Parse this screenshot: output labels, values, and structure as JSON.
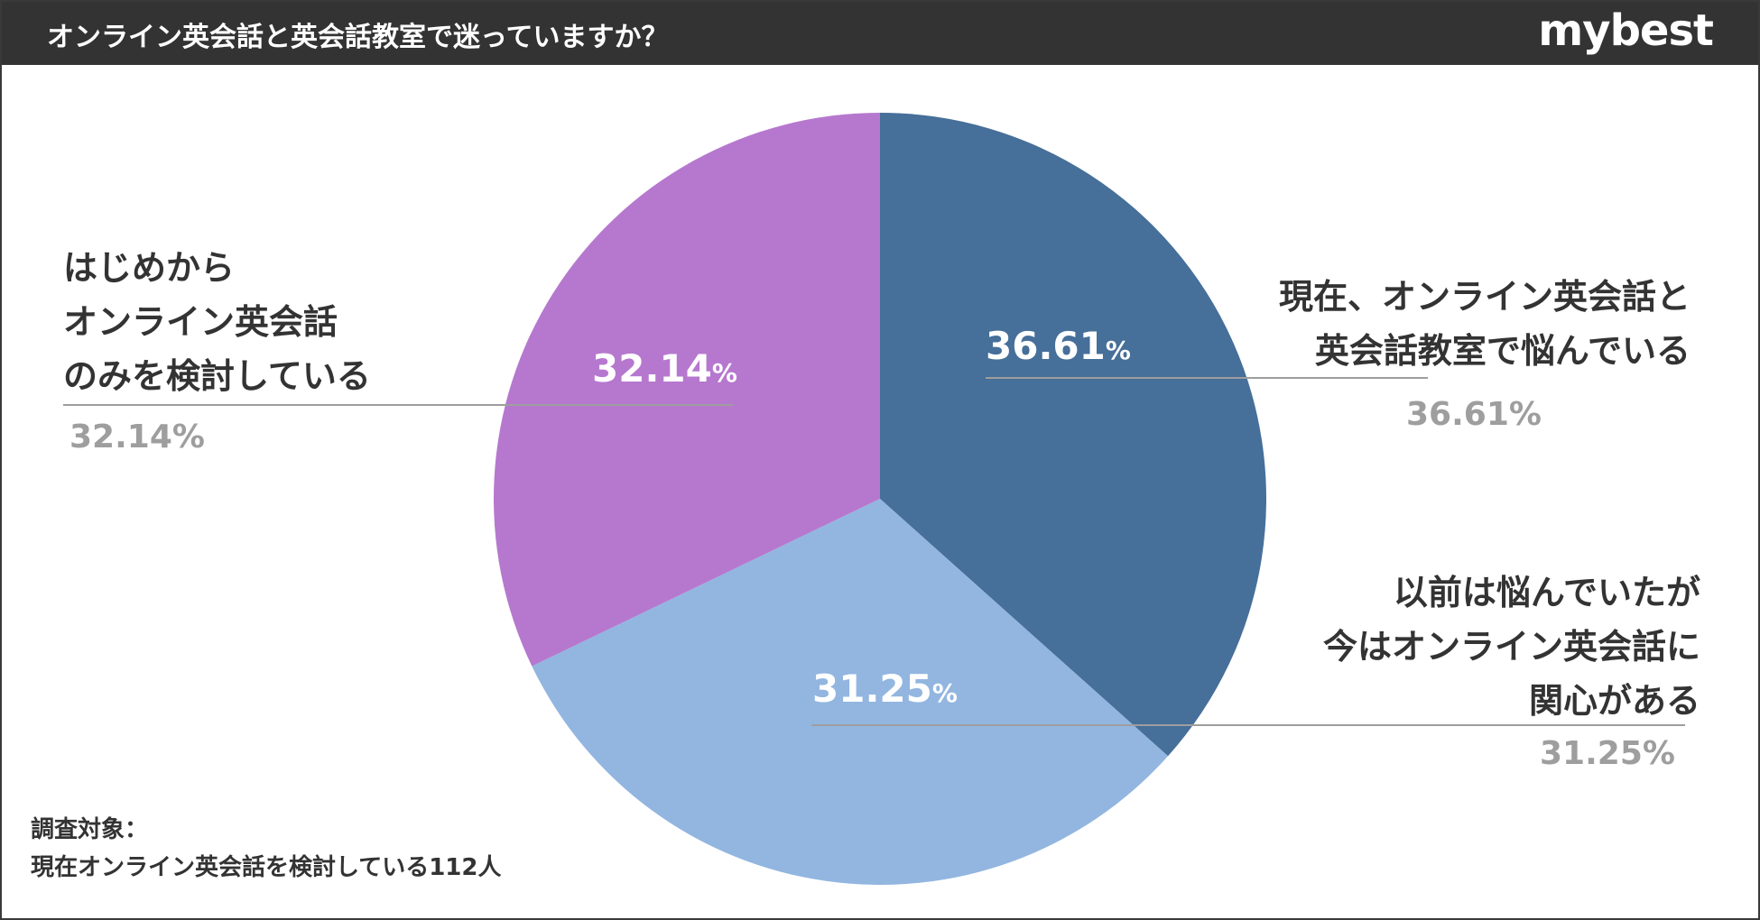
{
  "header": {
    "title": "オンライン英会話と英会話教室で迷っていますか？",
    "brand": "mybest"
  },
  "chart_data": {
    "type": "pie",
    "start_angle_deg": 0,
    "direction": "clockwise",
    "slices": [
      {
        "label_lines": [
          "現在、オンライン英会話と",
          "英会話教室で悩んでいる"
        ],
        "value": 36.61,
        "display": "36.61%",
        "inner_value": "36.61",
        "color": "#466f99"
      },
      {
        "label_lines": [
          "以前は悩んでいたが",
          "今はオンライン英会話に",
          "関心がある"
        ],
        "value": 31.25,
        "display": "31.25%",
        "inner_value": "31.25",
        "color": "#92b6e0"
      },
      {
        "label_lines": [
          "はじめから",
          "オンライン英会話",
          "のみを検討している"
        ],
        "value": 32.14,
        "display": "32.14%",
        "inner_value": "32.14",
        "color": "#b678ce"
      }
    ],
    "percent_symbol": "%"
  },
  "footnote": {
    "line1": "調査対象：",
    "line2": "現在オンライン英会話を検討している112人"
  },
  "colors": {
    "header_bg": "#333333",
    "leader_line": "#9e9e9e",
    "outer_pct": "#9e9e9e"
  }
}
